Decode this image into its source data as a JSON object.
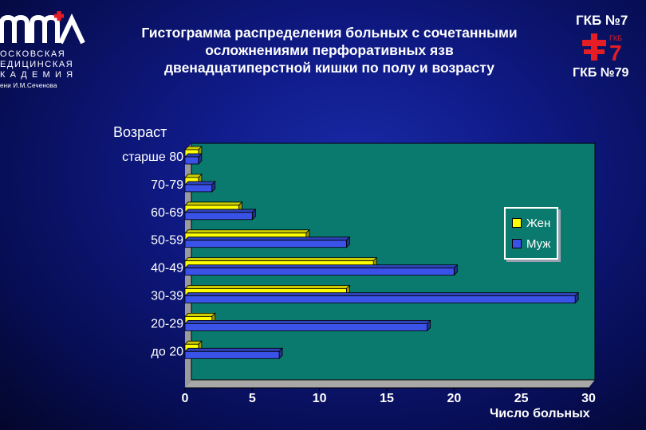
{
  "header": {
    "title_lines": [
      "Гистограмма распределения больных с сочетанными",
      "осложнениями перфоративных язв",
      "двенадцатиперстной кишки по полу и возрасту"
    ],
    "left_logo": {
      "lines": [
        "ОСКОВСКАЯ",
        "ЕДИЦИНСКАЯ",
        "К А Д Е М И Я"
      ],
      "small": "ени И.М.Сеченова"
    },
    "right_logo": {
      "top": "ГКБ №7",
      "mark_small": "ГКБ",
      "mark_big": "7",
      "bottom": "ГКБ №79"
    }
  },
  "colors": {
    "female": "#ffff00",
    "male": "#3a52e8",
    "plot_bg": "#0b7a6e",
    "background": "#0f1a86"
  },
  "chart_data": {
    "type": "bar",
    "orientation": "horizontal",
    "ylabel": "Возраст",
    "xlabel": "Число больных",
    "categories": [
      "старше 80",
      "70-79",
      "60-69",
      "50-59",
      "40-49",
      "30-39",
      "20-29",
      "до 20"
    ],
    "series": [
      {
        "name": "Жен",
        "values": [
          1,
          1,
          4,
          9,
          14,
          12,
          2,
          1
        ]
      },
      {
        "name": "Муж",
        "values": [
          1,
          2,
          5,
          12,
          20,
          29,
          18,
          7
        ]
      }
    ],
    "xlim": [
      0,
      30
    ],
    "xticks": [
      "0",
      "5",
      "10",
      "15",
      "20",
      "25",
      "30"
    ],
    "grid": false,
    "legend": "right"
  }
}
